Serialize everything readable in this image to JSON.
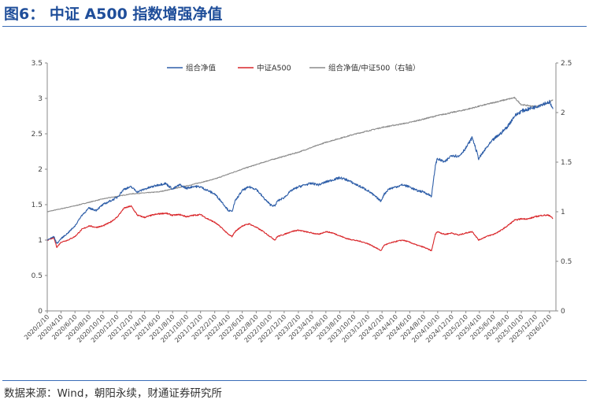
{
  "header": {
    "title": "图6： 中证 A500 指数增强净值"
  },
  "footer": {
    "source": "数据来源：Wind，朝阳永续，财通证券研究所"
  },
  "colors": {
    "accent": "#1f4e9a",
    "portfolio": "#2e5ea8",
    "index": "#d9262a",
    "ratio": "#8c8c8c"
  },
  "chart_data": {
    "type": "line",
    "title": "",
    "xlabel": "",
    "ylabel": "",
    "ylim": [
      0,
      3.5
    ],
    "y2lim": [
      0,
      2.5
    ],
    "y_ticks": [
      "0",
      "0.5",
      "1",
      "1.5",
      "2",
      "2.5",
      "3",
      "3.5"
    ],
    "y2_ticks": [
      "0",
      "0.5",
      "1",
      "1.5",
      "2",
      "2.5"
    ],
    "x_ticks": [
      "2020/2/10",
      "2020/4/10",
      "2020/6/10",
      "2020/8/10",
      "2020/10/10",
      "2020/12/10",
      "2021/2/10",
      "2021/4/10",
      "2021/6/10",
      "2021/8/10",
      "2021/10/10",
      "2021/12/10",
      "2022/2/10",
      "2022/4/10",
      "2022/6/10",
      "2022/8/10",
      "2022/10/10",
      "2022/12/10",
      "2023/2/10",
      "2023/4/10",
      "2023/6/10",
      "2023/8/10",
      "2023/10/10",
      "2023/12/10",
      "2024/2/10",
      "2024/4/10",
      "2024/6/10",
      "2024/8/10",
      "2024/10/10",
      "2024/12/10",
      "2025/2/10",
      "2025/4/10",
      "2025/6/10",
      "2025/8/10",
      "2025/10/10",
      "2025/12/10",
      "2026/2/10"
    ],
    "legend_position": "top",
    "grid": false,
    "series": [
      {
        "name": "组合净值",
        "axis": "left",
        "x": [
          "2020/2/10",
          "2020/3/10",
          "2020/3/23",
          "2020/4/10",
          "2020/5/10",
          "2020/6/10",
          "2020/7/10",
          "2020/8/10",
          "2020/9/10",
          "2020/10/10",
          "2020/11/10",
          "2020/12/10",
          "2021/1/10",
          "2021/2/10",
          "2021/3/10",
          "2021/4/10",
          "2021/5/10",
          "2021/6/10",
          "2021/7/10",
          "2021/8/10",
          "2021/9/10",
          "2021/10/10",
          "2021/11/10",
          "2021/12/10",
          "2022/1/10",
          "2022/2/10",
          "2022/3/10",
          "2022/4/10",
          "2022/4/26",
          "2022/5/10",
          "2022/6/10",
          "2022/7/10",
          "2022/8/10",
          "2022/9/10",
          "2022/10/10",
          "2022/10/31",
          "2022/11/10",
          "2022/12/10",
          "2023/1/10",
          "2023/2/10",
          "2023/3/10",
          "2023/4/10",
          "2023/5/10",
          "2023/6/10",
          "2023/7/10",
          "2023/8/10",
          "2023/9/10",
          "2023/10/10",
          "2023/11/10",
          "2023/12/10",
          "2024/1/10",
          "2024/2/5",
          "2024/2/20",
          "2024/3/10",
          "2024/4/10",
          "2024/5/10",
          "2024/6/10",
          "2024/7/10",
          "2024/8/10",
          "2024/9/13",
          "2024/9/30",
          "2024/10/8",
          "2024/11/10",
          "2024/12/10",
          "2025/1/10",
          "2025/2/10",
          "2025/3/10",
          "2025/4/7",
          "2025/5/10",
          "2025/6/10",
          "2025/7/10",
          "2025/8/10",
          "2025/9/10",
          "2025/10/10",
          "2025/11/10",
          "2025/12/10",
          "2026/1/10",
          "2026/2/10",
          "2026/2/25"
        ],
        "values": [
          1.0,
          1.05,
          0.95,
          1.02,
          1.1,
          1.2,
          1.35,
          1.45,
          1.42,
          1.5,
          1.55,
          1.6,
          1.72,
          1.75,
          1.68,
          1.72,
          1.75,
          1.78,
          1.8,
          1.72,
          1.78,
          1.73,
          1.76,
          1.75,
          1.7,
          1.65,
          1.55,
          1.42,
          1.4,
          1.55,
          1.7,
          1.75,
          1.72,
          1.6,
          1.5,
          1.48,
          1.55,
          1.6,
          1.7,
          1.75,
          1.78,
          1.8,
          1.78,
          1.82,
          1.85,
          1.88,
          1.85,
          1.8,
          1.75,
          1.7,
          1.62,
          1.55,
          1.65,
          1.72,
          1.75,
          1.78,
          1.75,
          1.7,
          1.68,
          1.62,
          2.05,
          2.15,
          2.1,
          2.2,
          2.18,
          2.3,
          2.45,
          2.15,
          2.3,
          2.42,
          2.5,
          2.6,
          2.75,
          2.82,
          2.85,
          2.88,
          2.92,
          2.95,
          2.85
        ]
      },
      {
        "name": "中证A500",
        "axis": "left",
        "x": [
          "2020/2/10",
          "2020/3/10",
          "2020/3/23",
          "2020/4/10",
          "2020/5/10",
          "2020/6/10",
          "2020/7/10",
          "2020/8/10",
          "2020/9/10",
          "2020/10/10",
          "2020/11/10",
          "2020/12/10",
          "2021/1/10",
          "2021/2/10",
          "2021/3/10",
          "2021/4/10",
          "2021/5/10",
          "2021/6/10",
          "2021/7/10",
          "2021/8/10",
          "2021/9/10",
          "2021/10/10",
          "2021/11/10",
          "2021/12/10",
          "2022/1/10",
          "2022/2/10",
          "2022/3/10",
          "2022/4/10",
          "2022/4/26",
          "2022/5/10",
          "2022/6/10",
          "2022/7/10",
          "2022/8/10",
          "2022/9/10",
          "2022/10/10",
          "2022/10/31",
          "2022/11/10",
          "2022/12/10",
          "2023/1/10",
          "2023/2/10",
          "2023/3/10",
          "2023/4/10",
          "2023/5/10",
          "2023/6/10",
          "2023/7/10",
          "2023/8/10",
          "2023/9/10",
          "2023/10/10",
          "2023/11/10",
          "2023/12/10",
          "2024/1/10",
          "2024/2/5",
          "2024/2/20",
          "2024/3/10",
          "2024/4/10",
          "2024/5/10",
          "2024/6/10",
          "2024/7/10",
          "2024/8/10",
          "2024/9/13",
          "2024/9/30",
          "2024/10/8",
          "2024/11/10",
          "2024/12/10",
          "2025/1/10",
          "2025/2/10",
          "2025/3/10",
          "2025/4/7",
          "2025/5/10",
          "2025/6/10",
          "2025/7/10",
          "2025/8/10",
          "2025/9/10",
          "2025/10/10",
          "2025/11/10",
          "2025/12/10",
          "2026/1/10",
          "2026/2/10",
          "2026/2/25"
        ],
        "values": [
          1.0,
          1.03,
          0.9,
          0.97,
          1.0,
          1.05,
          1.15,
          1.2,
          1.18,
          1.2,
          1.25,
          1.32,
          1.45,
          1.48,
          1.35,
          1.32,
          1.35,
          1.37,
          1.38,
          1.35,
          1.36,
          1.33,
          1.35,
          1.36,
          1.3,
          1.25,
          1.18,
          1.08,
          1.05,
          1.12,
          1.2,
          1.23,
          1.18,
          1.12,
          1.05,
          1.0,
          1.05,
          1.08,
          1.12,
          1.14,
          1.12,
          1.1,
          1.08,
          1.12,
          1.1,
          1.06,
          1.02,
          1.0,
          0.98,
          0.95,
          0.9,
          0.85,
          0.93,
          0.95,
          0.98,
          1.0,
          0.97,
          0.93,
          0.9,
          0.85,
          1.08,
          1.12,
          1.08,
          1.1,
          1.07,
          1.1,
          1.12,
          1.0,
          1.05,
          1.08,
          1.13,
          1.2,
          1.28,
          1.3,
          1.3,
          1.33,
          1.35,
          1.35,
          1.3
        ]
      },
      {
        "name": "组合净值/中证500（右轴）",
        "axis": "right",
        "x": [
          "2020/2/10",
          "2020/6/10",
          "2020/10/10",
          "2021/2/10",
          "2021/6/10",
          "2021/10/10",
          "2022/2/10",
          "2022/6/10",
          "2022/10/10",
          "2023/2/10",
          "2023/6/10",
          "2023/10/10",
          "2024/2/10",
          "2024/6/10",
          "2024/10/10",
          "2025/2/10",
          "2025/6/10",
          "2025/9/10",
          "2025/10/10",
          "2025/12/10",
          "2026/2/10",
          "2026/2/25"
        ],
        "values": [
          1.0,
          1.06,
          1.13,
          1.18,
          1.2,
          1.26,
          1.33,
          1.43,
          1.52,
          1.6,
          1.7,
          1.78,
          1.85,
          1.9,
          1.97,
          2.03,
          2.1,
          2.15,
          2.08,
          2.06,
          2.1,
          2.13
        ]
      }
    ]
  }
}
